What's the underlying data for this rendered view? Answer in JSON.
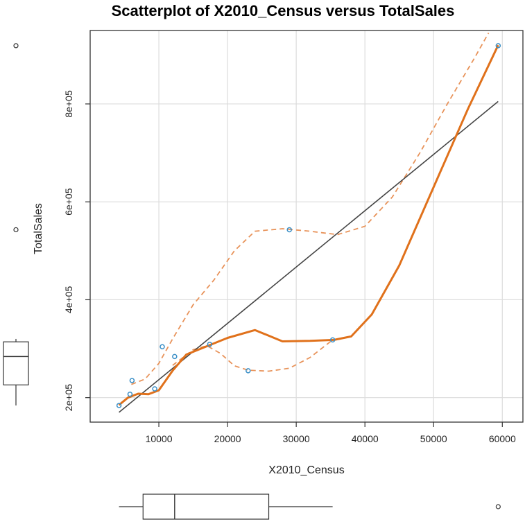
{
  "chart_data": {
    "type": "scatter",
    "title": "Scatterplot of X2010_Census versus TotalSales",
    "xlabel": "X2010_Census",
    "ylabel": "TotalSales",
    "xlim": [
      0,
      63000
    ],
    "ylim": [
      150000,
      950000
    ],
    "x_ticks": [
      10000,
      20000,
      30000,
      40000,
      50000,
      60000
    ],
    "x_tick_labels": [
      "10000",
      "20000",
      "30000",
      "40000",
      "50000",
      "60000"
    ],
    "y_ticks": [
      200000,
      400000,
      600000,
      800000
    ],
    "y_tick_labels": [
      "2e+05",
      "4e+05",
      "6e+05",
      "8e+05"
    ],
    "grid": true,
    "points": [
      {
        "x": 4200,
        "y": 184000
      },
      {
        "x": 5800,
        "y": 207000
      },
      {
        "x": 6100,
        "y": 235000
      },
      {
        "x": 9400,
        "y": 218000
      },
      {
        "x": 10500,
        "y": 304000
      },
      {
        "x": 12300,
        "y": 284000
      },
      {
        "x": 17400,
        "y": 309000
      },
      {
        "x": 23000,
        "y": 255000
      },
      {
        "x": 29000,
        "y": 543000
      },
      {
        "x": 35300,
        "y": 318000
      },
      {
        "x": 59400,
        "y": 919000
      }
    ],
    "regression_line": [
      {
        "x": 4200,
        "y": 170000
      },
      {
        "x": 59400,
        "y": 805000
      }
    ],
    "smooth_line": [
      {
        "x": 4200,
        "y": 185000
      },
      {
        "x": 5500,
        "y": 200000
      },
      {
        "x": 7000,
        "y": 208000
      },
      {
        "x": 8500,
        "y": 207000
      },
      {
        "x": 10000,
        "y": 215000
      },
      {
        "x": 12000,
        "y": 255000
      },
      {
        "x": 14000,
        "y": 288000
      },
      {
        "x": 17000,
        "y": 305000
      },
      {
        "x": 20000,
        "y": 322000
      },
      {
        "x": 24000,
        "y": 338000
      },
      {
        "x": 28000,
        "y": 315000
      },
      {
        "x": 32000,
        "y": 316000
      },
      {
        "x": 35500,
        "y": 318000
      },
      {
        "x": 38000,
        "y": 325000
      },
      {
        "x": 41000,
        "y": 370000
      },
      {
        "x": 45000,
        "y": 470000
      },
      {
        "x": 50000,
        "y": 630000
      },
      {
        "x": 55000,
        "y": 790000
      },
      {
        "x": 59400,
        "y": 920000
      }
    ],
    "spread_upper": [
      {
        "x": 6000,
        "y": 227000
      },
      {
        "x": 8000,
        "y": 238000
      },
      {
        "x": 10000,
        "y": 270000
      },
      {
        "x": 12000,
        "y": 320000
      },
      {
        "x": 15000,
        "y": 390000
      },
      {
        "x": 18000,
        "y": 440000
      },
      {
        "x": 21000,
        "y": 500000
      },
      {
        "x": 24000,
        "y": 540000
      },
      {
        "x": 28000,
        "y": 545000
      },
      {
        "x": 32000,
        "y": 540000
      },
      {
        "x": 36000,
        "y": 533000
      },
      {
        "x": 40000,
        "y": 550000
      },
      {
        "x": 44000,
        "y": 610000
      },
      {
        "x": 48000,
        "y": 700000
      },
      {
        "x": 52000,
        "y": 800000
      },
      {
        "x": 56000,
        "y": 895000
      },
      {
        "x": 58000,
        "y": 945000
      }
    ],
    "spread_lower": [
      {
        "x": 12000,
        "y": 266000
      },
      {
        "x": 15000,
        "y": 298000
      },
      {
        "x": 17000,
        "y": 306000
      },
      {
        "x": 19000,
        "y": 290000
      },
      {
        "x": 21000,
        "y": 265000
      },
      {
        "x": 23000,
        "y": 256000
      },
      {
        "x": 26000,
        "y": 254000
      },
      {
        "x": 29000,
        "y": 260000
      },
      {
        "x": 32000,
        "y": 282000
      },
      {
        "x": 35300,
        "y": 318000
      }
    ],
    "x_boxplot": {
      "min": 4200,
      "q1": 7700,
      "median": 12300,
      "q3": 26000,
      "max": 35300,
      "outliers": [
        59400
      ]
    },
    "y_boxplot": {
      "min": 184000,
      "q1": 226000,
      "median": 284000,
      "q3": 314000,
      "max": 320000,
      "outliers": [
        543000,
        919000
      ]
    },
    "colors": {
      "points": "#3a8fc7",
      "regression": "#444444",
      "smooth": "#e0711b",
      "spread": "#e8935a",
      "grid": "#dcdcdc",
      "frame": "#333333"
    }
  }
}
